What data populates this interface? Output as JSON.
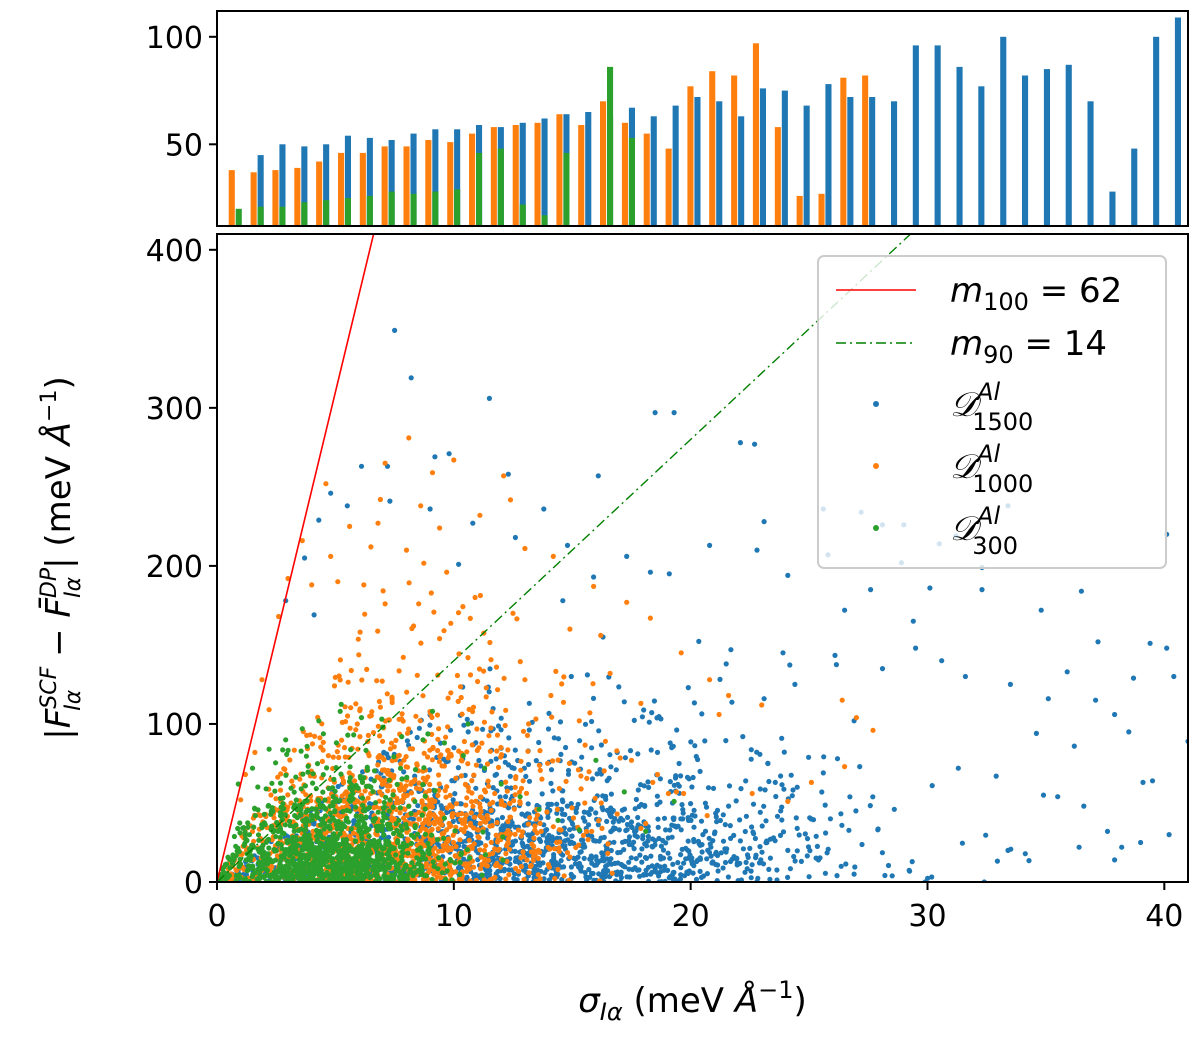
{
  "chart_data": [
    {
      "type": "bar",
      "panel": "top",
      "ylim": [
        12,
        112
      ],
      "yticks": [
        50,
        100
      ],
      "ytick_labels": [
        "50",
        "100"
      ],
      "grid": false,
      "series": [
        {
          "color": "#1f77b4",
          "values": [
            null,
            45,
            50,
            49,
            50,
            54,
            53,
            52,
            55,
            57,
            57,
            59,
            58,
            60,
            62,
            64,
            65,
            63,
            67,
            63,
            68,
            72,
            70,
            63,
            76,
            75,
            68,
            78,
            72,
            72,
            70,
            96,
            96,
            86,
            77,
            100,
            82,
            85,
            87,
            70,
            28,
            48,
            100,
            109
          ]
        },
        {
          "color": "#ff7f0e",
          "values": [
            38,
            37,
            38,
            39,
            42,
            46,
            46,
            49,
            49,
            52,
            51,
            55,
            58,
            59,
            60,
            64,
            59,
            70,
            60,
            55,
            48,
            77,
            84,
            82,
            97,
            58,
            26,
            27,
            81,
            82,
            null,
            null,
            null,
            null,
            null,
            null,
            null,
            null,
            null,
            null,
            null,
            null,
            null,
            null
          ]
        },
        {
          "color": "#2ca02c",
          "values": [
            20,
            21,
            21,
            23,
            24,
            25,
            26,
            28,
            27,
            28,
            29,
            46,
            48,
            22,
            17,
            46,
            10,
            86,
            53,
            null,
            null,
            null,
            null,
            null,
            null,
            null,
            null,
            null,
            null,
            null,
            null,
            null,
            null,
            null,
            null,
            null,
            null,
            null,
            null,
            null,
            null,
            null,
            null,
            null
          ]
        }
      ]
    },
    {
      "type": "scatter",
      "panel": "bottom",
      "xlabel": "σ_Iα (meV Å⁻¹)",
      "ylabel": "|F_Iα^SCF − F̄_Iα^DP| (meV Å⁻¹)",
      "xlim": [
        0,
        41
      ],
      "ylim": [
        0,
        410
      ],
      "xticks": [
        0,
        10,
        20,
        30,
        40
      ],
      "xtick_labels": [
        "0",
        "10",
        "20",
        "30",
        "40"
      ],
      "yticks": [
        0,
        100,
        200,
        300,
        400
      ],
      "ytick_labels": [
        "0",
        "100",
        "200",
        "300",
        "400"
      ],
      "grid": false,
      "legend_position": "top-right",
      "lines": [
        {
          "label_base": "m",
          "label_sub": "100",
          "label_rest": " = 62",
          "slope": 62,
          "color": "#ff0000",
          "style": "solid"
        },
        {
          "label_base": "m",
          "label_sub": "90",
          "label_rest": " = 14",
          "slope": 14,
          "color": "#008000",
          "style": "dashdot"
        }
      ],
      "series": [
        {
          "label_base": "𝒟",
          "label_sup": "Al",
          "label_sub": "1500",
          "color": "#1f77b4",
          "points": [
            [
              7.5,
              349
            ],
            [
              8.2,
              319
            ],
            [
              11.5,
              306
            ],
            [
              18.5,
              297
            ],
            [
              19.3,
              297
            ],
            [
              22.1,
              278
            ],
            [
              22.7,
              277
            ],
            [
              9.8,
              271
            ],
            [
              9.2,
              269
            ],
            [
              12.3,
              258
            ],
            [
              16.1,
              257
            ],
            [
              6.1,
              263
            ],
            [
              7.2,
              263
            ],
            [
              4.8,
              246
            ],
            [
              13.8,
              236
            ],
            [
              23.1,
              228
            ],
            [
              25.6,
              236
            ],
            [
              27.2,
              234
            ],
            [
              28.1,
              226
            ],
            [
              29.0,
              226
            ],
            [
              31.2,
              219
            ],
            [
              40.1,
              220
            ],
            [
              33.4,
              238
            ],
            [
              30.5,
              214
            ],
            [
              14.8,
              213
            ],
            [
              20.8,
              213
            ],
            [
              22.8,
              210
            ],
            [
              17.3,
              206
            ],
            [
              25.8,
              207
            ],
            [
              28.9,
              202
            ],
            [
              32.3,
              199
            ],
            [
              18.3,
              196
            ],
            [
              19.1,
              195
            ],
            [
              24.1,
              194
            ],
            [
              27.6,
              185
            ],
            [
              30.1,
              186
            ],
            [
              32.3,
              185
            ],
            [
              36.5,
              184
            ],
            [
              34.8,
              172
            ],
            [
              26.5,
              172
            ],
            [
              29.4,
              165
            ],
            [
              39.4,
              151
            ],
            [
              37.2,
              152
            ],
            [
              40.1,
              148
            ],
            [
              35.9,
              133
            ],
            [
              38.7,
              129
            ],
            [
              21.7,
              147
            ],
            [
              23.9,
              145
            ],
            [
              28.1,
              135
            ],
            [
              29.5,
              148
            ],
            [
              30.6,
              140
            ],
            [
              31.6,
              130
            ],
            [
              33.5,
              125
            ],
            [
              35.1,
              116
            ],
            [
              37.1,
              115
            ],
            [
              38.5,
              95
            ],
            [
              40.4,
              130
            ],
            [
              41.0,
              89
            ],
            [
              37.9,
              106
            ],
            [
              36.2,
              86
            ],
            [
              34.6,
              94
            ],
            [
              39.1,
              63
            ],
            [
              39.5,
              64
            ],
            [
              34.9,
              55
            ],
            [
              35.5,
              54
            ],
            [
              36.6,
              48
            ],
            [
              32.9,
              67
            ],
            [
              31.3,
              72
            ],
            [
              30.2,
              61
            ],
            [
              28.6,
              46
            ],
            [
              27.9,
              33
            ],
            [
              25.9,
              40
            ],
            [
              37.6,
              32
            ],
            [
              38.2,
              22
            ],
            [
              40.2,
              30
            ],
            [
              39.0,
              25
            ],
            [
              37.9,
              14
            ],
            [
              36.4,
              22
            ],
            [
              33.4,
              20
            ],
            [
              32.4,
              0
            ],
            [
              29.9,
              0
            ],
            [
              26.9,
              5
            ],
            [
              25.4,
              14
            ],
            [
              23.3,
              8
            ],
            [
              24.1,
              20
            ],
            [
              22.1,
              26
            ],
            [
              20.9,
              12
            ],
            [
              24.5,
              60
            ],
            [
              26.2,
              78
            ],
            [
              25.6,
              69
            ],
            [
              23.8,
              45
            ],
            [
              21.6,
              48
            ],
            [
              19.6,
              33
            ],
            [
              20.4,
              70
            ],
            [
              22.2,
              92
            ],
            [
              23.1,
              116
            ],
            [
              24.4,
              125
            ],
            [
              26.9,
              102
            ],
            [
              18.6,
              82
            ],
            [
              17.2,
              114
            ],
            [
              19.9,
              123
            ],
            [
              21.5,
              138
            ],
            [
              16.3,
              155
            ],
            [
              14.6,
              178
            ],
            [
              15.9,
              193
            ],
            [
              12.6,
              218
            ],
            [
              10.8,
              227
            ],
            [
              9.0,
              236
            ],
            [
              7.3,
              241
            ],
            [
              5.5,
              238
            ],
            [
              4.3,
              229
            ],
            [
              3.7,
              205
            ],
            [
              2.9,
              178
            ],
            [
              4.1,
              169
            ],
            [
              10.2,
              201
            ]
          ]
        },
        {
          "label_base": "𝒟",
          "label_sup": "Al",
          "label_sub": "1000",
          "color": "#ff7f0e",
          "points": [
            [
              8.1,
              281
            ],
            [
              7.1,
              265
            ],
            [
              9.1,
              259
            ],
            [
              10.0,
              267
            ],
            [
              12.1,
              257
            ],
            [
              4.6,
              252
            ],
            [
              6.9,
              242
            ],
            [
              8.6,
              238
            ],
            [
              5.6,
              225
            ],
            [
              6.8,
              227
            ],
            [
              9.4,
              224
            ],
            [
              11.1,
              232
            ],
            [
              3.6,
              216
            ],
            [
              4.8,
              206
            ],
            [
              13.0,
              211
            ],
            [
              14.2,
              206
            ],
            [
              15.9,
              187
            ],
            [
              17.3,
              177
            ],
            [
              18.3,
              167
            ],
            [
              16.2,
              156
            ],
            [
              19.6,
              145
            ],
            [
              20.8,
              128
            ],
            [
              21.6,
              118
            ],
            [
              23.0,
              112
            ],
            [
              21.2,
              106
            ],
            [
              26.4,
              115
            ],
            [
              27.0,
              104
            ],
            [
              27.7,
              96
            ],
            [
              26.5,
              73
            ],
            [
              25.1,
              63
            ],
            [
              24.1,
              51
            ],
            [
              22.6,
              56
            ],
            [
              20.7,
              42
            ],
            [
              19.4,
              57
            ],
            [
              18.4,
              63
            ],
            [
              18.1,
              37
            ],
            [
              16.9,
              43
            ],
            [
              15.6,
              32
            ],
            [
              14.2,
              35
            ],
            [
              13.3,
              24
            ],
            [
              12.2,
              18
            ],
            [
              11.3,
              15
            ],
            [
              3.0,
              192
            ],
            [
              2.6,
              168
            ],
            [
              1.9,
              128
            ],
            [
              2.2,
              109
            ],
            [
              1.6,
              82
            ],
            [
              1.2,
              68
            ],
            [
              1.0,
              52
            ],
            [
              4.0,
              188
            ],
            [
              5.1,
              190
            ],
            [
              6.2,
              188
            ],
            [
              7.1,
              176
            ],
            [
              8.3,
              162
            ],
            [
              9.4,
              154
            ],
            [
              10.6,
              142
            ],
            [
              11.8,
              136
            ],
            [
              13.0,
              128
            ],
            [
              14.1,
              118
            ],
            [
              15.3,
              102
            ],
            [
              16.4,
              89
            ],
            [
              17.5,
              77
            ],
            [
              18.6,
              68
            ],
            [
              19.7,
              56
            ],
            [
              12.5,
              170
            ],
            [
              10.9,
              180
            ],
            [
              9.7,
              196
            ],
            [
              8.0,
              210
            ],
            [
              6.5,
              212
            ],
            [
              14.9,
              160
            ],
            [
              16.6,
              132
            ],
            [
              17.9,
              113
            ]
          ]
        },
        {
          "label_base": "𝒟",
          "label_sup": "Al",
          "label_sub": "300",
          "color": "#2ca02c",
          "points": [
            [
              0.9,
              62
            ],
            [
              1.5,
              72
            ],
            [
              2.2,
              84
            ],
            [
              2.9,
              90
            ],
            [
              3.6,
              97
            ],
            [
              4.3,
              102
            ],
            [
              5.2,
              108
            ],
            [
              6.1,
              104
            ],
            [
              7.0,
              98
            ],
            [
              7.8,
              92
            ],
            [
              8.7,
              90
            ],
            [
              9.6,
              88
            ],
            [
              10.4,
              80
            ],
            [
              11.3,
              72
            ],
            [
              12.0,
              62
            ],
            [
              12.8,
              54
            ],
            [
              13.6,
              46
            ],
            [
              14.4,
              39
            ],
            [
              15.3,
              33
            ],
            [
              16.0,
              77
            ],
            [
              17.2,
              57
            ],
            [
              18.1,
              32
            ],
            [
              19.3,
              51
            ],
            [
              9.1,
              108
            ],
            [
              10.6,
              100
            ]
          ]
        }
      ]
    }
  ]
}
